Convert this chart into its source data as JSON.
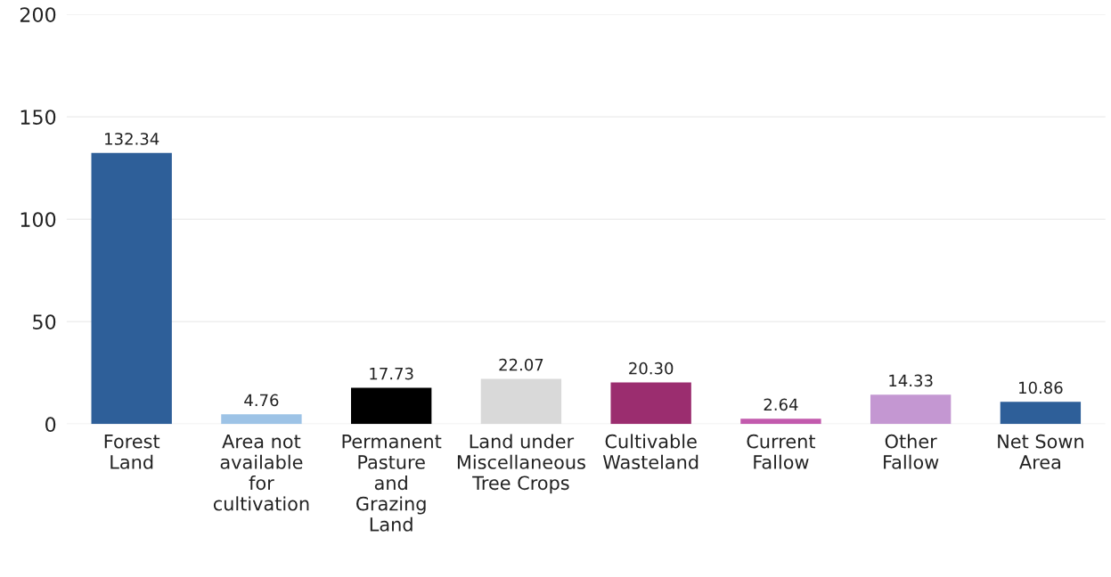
{
  "chart_data": {
    "type": "bar",
    "categories": [
      "Forest Land",
      "Area not available for cultivation",
      "Permanent Pasture and Grazing Land",
      "Land under Miscellaneous Tree Crops",
      "Cultivable Wasteland",
      "Current Fallow",
      "Other Fallow",
      "Net Sown Area"
    ],
    "values": [
      132.34,
      4.76,
      17.73,
      22.07,
      20.3,
      2.64,
      14.33,
      10.86
    ],
    "value_labels": [
      "132.34",
      "4.76",
      "17.73",
      "22.07",
      "20.30",
      "2.64",
      "14.33",
      "10.86"
    ],
    "colors": [
      "#2e5f99",
      "#9dc3e6",
      "#000000",
      "#d9d9d9",
      "#9b2d6f",
      "#c25aad",
      "#c497d2",
      "#2e5f99"
    ],
    "ylim": [
      0,
      200
    ],
    "yticks": [
      0,
      50,
      100,
      150,
      200
    ],
    "grid": "y",
    "legend": false
  }
}
